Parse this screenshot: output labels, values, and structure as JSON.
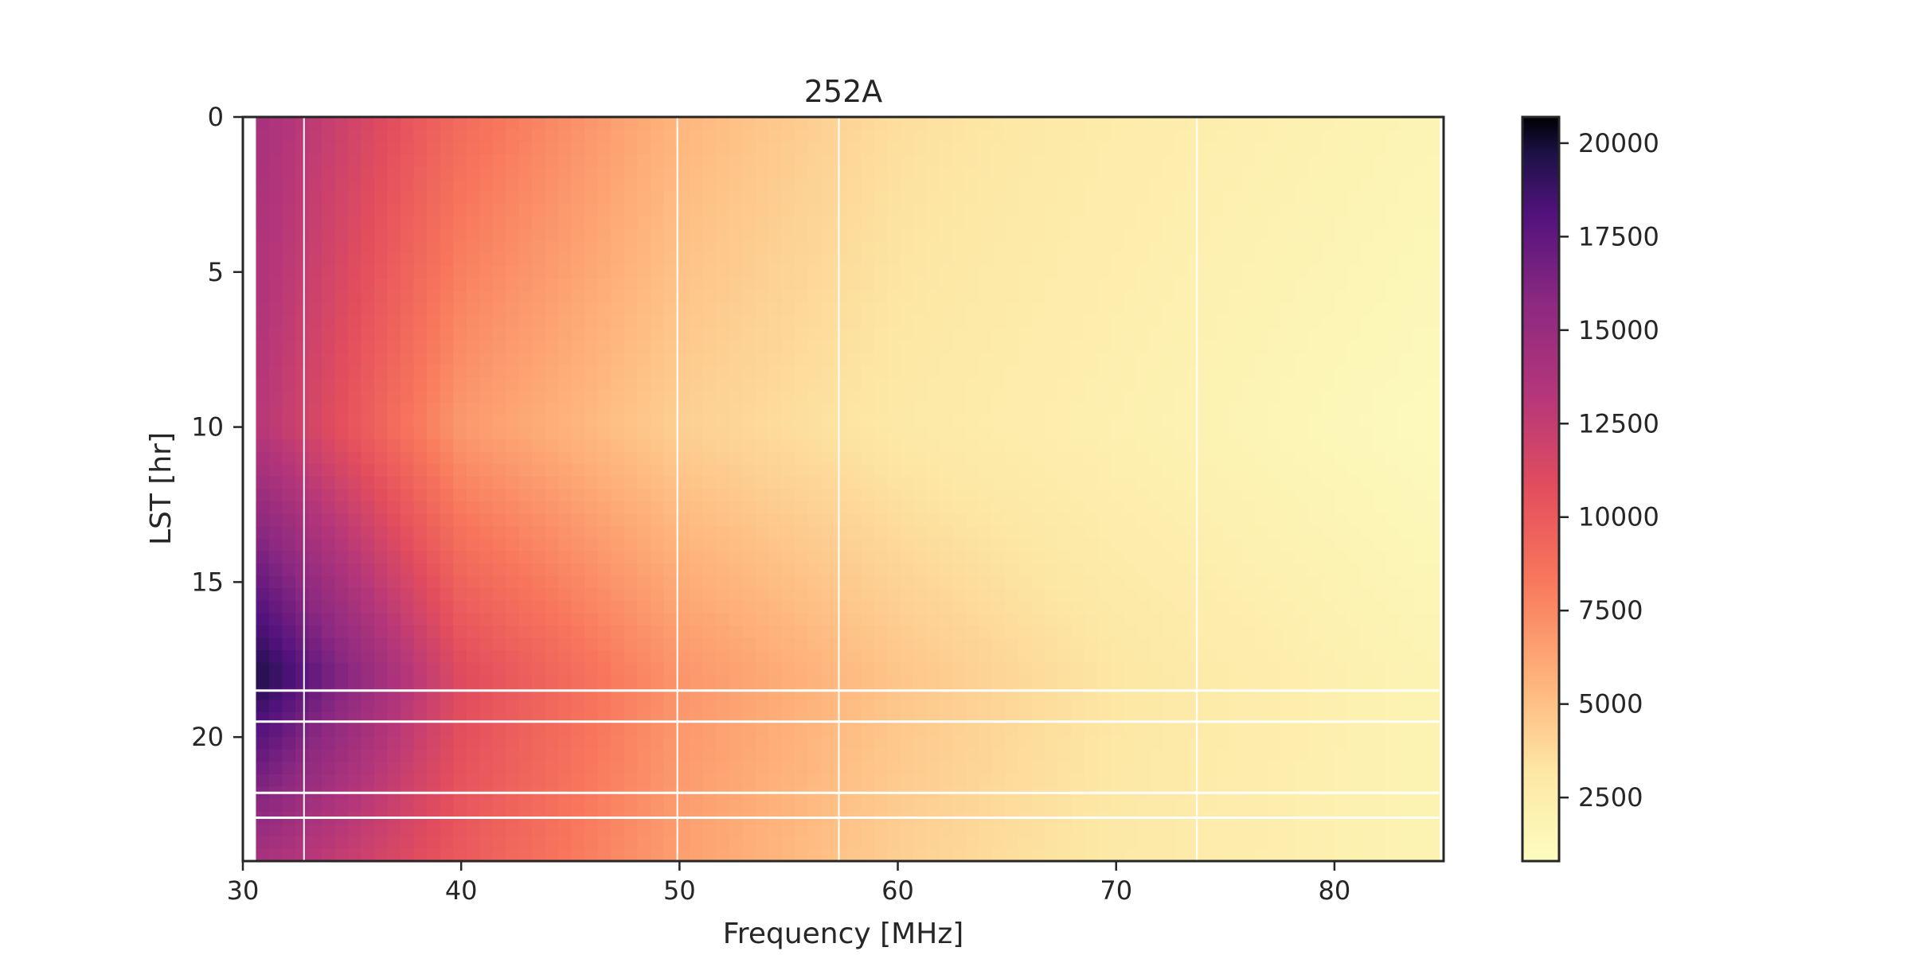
{
  "chart_data": {
    "type": "heatmap",
    "title": "252A",
    "xlabel": "Frequency [MHz]",
    "ylabel": "LST [hr]",
    "xlim": [
      30,
      85
    ],
    "ylim": [
      24,
      0
    ],
    "x_ticks": [
      30,
      40,
      50,
      60,
      70,
      80
    ],
    "x_tick_labels": [
      "30",
      "40",
      "50",
      "60",
      "70",
      "80"
    ],
    "y_ticks": [
      0,
      5,
      10,
      15,
      20
    ],
    "y_tick_labels": [
      "0",
      "5",
      "10",
      "15",
      "20"
    ],
    "colormap": "magma_r",
    "colorbar": {
      "range": [
        800,
        20700
      ],
      "ticks": [
        2500,
        5000,
        7500,
        10000,
        12500,
        15000,
        17500,
        20000
      ],
      "tick_labels": [
        "2500",
        "5000",
        "7500",
        "10000",
        "12500",
        "15000",
        "17500",
        "20000"
      ]
    },
    "data_frequency_range_mhz": [
      30.6,
      84.8
    ],
    "intensity_samples": [
      {
        "lst": 0,
        "frequency": 31,
        "value": 14000
      },
      {
        "lst": 0,
        "frequency": 40,
        "value": 9000
      },
      {
        "lst": 0,
        "frequency": 50,
        "value": 5500
      },
      {
        "lst": 0,
        "frequency": 60,
        "value": 3600
      },
      {
        "lst": 0,
        "frequency": 70,
        "value": 2700
      },
      {
        "lst": 0,
        "frequency": 84,
        "value": 1800
      },
      {
        "lst": 10,
        "frequency": 31,
        "value": 13000
      },
      {
        "lst": 10,
        "frequency": 40,
        "value": 6800
      },
      {
        "lst": 10,
        "frequency": 50,
        "value": 4300
      },
      {
        "lst": 10,
        "frequency": 60,
        "value": 3000
      },
      {
        "lst": 10,
        "frequency": 70,
        "value": 2200
      },
      {
        "lst": 10,
        "frequency": 84,
        "value": 1200
      },
      {
        "lst": 18,
        "frequency": 31,
        "value": 19500
      },
      {
        "lst": 18,
        "frequency": 40,
        "value": 11000
      },
      {
        "lst": 18,
        "frequency": 50,
        "value": 7000
      },
      {
        "lst": 18,
        "frequency": 60,
        "value": 4800
      },
      {
        "lst": 18,
        "frequency": 70,
        "value": 3200
      },
      {
        "lst": 18,
        "frequency": 84,
        "value": 1900
      },
      {
        "lst": 24,
        "frequency": 31,
        "value": 14000
      },
      {
        "lst": 24,
        "frequency": 40,
        "value": 10000
      },
      {
        "lst": 24,
        "frequency": 50,
        "value": 6500
      },
      {
        "lst": 24,
        "frequency": 60,
        "value": 4300
      },
      {
        "lst": 24,
        "frequency": 70,
        "value": 3000
      },
      {
        "lst": 24,
        "frequency": 84,
        "value": 1900
      }
    ],
    "masked_frequencies_mhz": [
      32.8,
      49.9,
      57.3,
      73.7
    ],
    "masked_lst_hr": [
      18.5,
      19.5,
      21.8,
      22.6
    ]
  }
}
